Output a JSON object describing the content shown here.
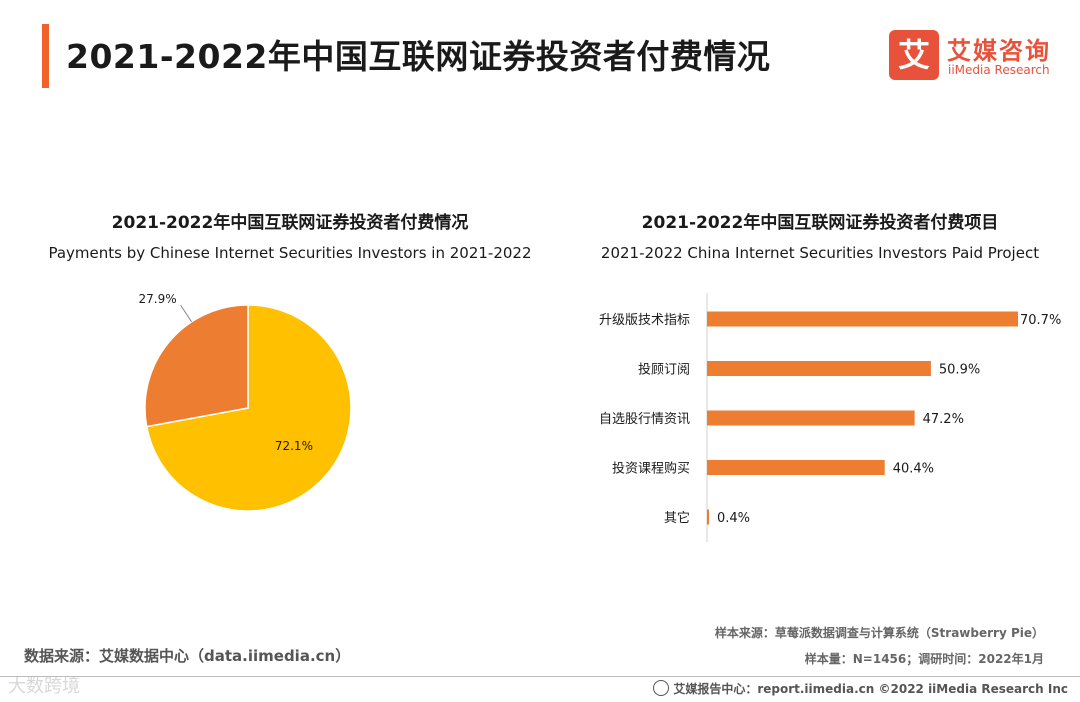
{
  "header": {
    "title": "2021-2022年中国互联网证券投资者付费情况"
  },
  "logo": {
    "mark": "艾",
    "cn": "艾媒咨询",
    "en": "iiMedia Research"
  },
  "chart_data": [
    {
      "type": "pie",
      "title": "2021-2022年中国互联网证券投资者付费情况",
      "subtitle": "Payments by Chinese Internet Securities Investors in 2021-2022",
      "slices": [
        {
          "label": "72.1%",
          "value": 72.1,
          "color": "#ffc000"
        },
        {
          "label": "27.9%",
          "value": 27.9,
          "color": "#ed7d31"
        }
      ]
    },
    {
      "type": "bar",
      "orientation": "horizontal",
      "title": "2021-2022年中国互联网证券投资者付费项目",
      "subtitle": "2021-2022 China Internet Securities Investors Paid Project",
      "categories": [
        "升级版技术指标",
        "投顾订阅",
        "自选股行情资讯",
        "投资课程购买",
        "其它"
      ],
      "values": [
        70.7,
        50.9,
        47.2,
        40.4,
        0.4
      ],
      "value_labels": [
        "70.7%",
        "50.9%",
        "47.2%",
        "40.4%",
        "0.4%"
      ],
      "color": "#ed7d31",
      "xlim": [
        0,
        80
      ]
    }
  ],
  "source": {
    "left": "数据来源：艾媒数据中心（data.iimedia.cn）",
    "sample": "样本来源：草莓派数据调查与计算系统（Strawberry  Pie）",
    "sample_size": "样本量：N=1456；调研时间：2022年1月"
  },
  "watermark": "大数跨境",
  "footer": {
    "text": "艾媒报告中心：report.iimedia.cn   ©2022  iiMedia Research  Inc"
  }
}
